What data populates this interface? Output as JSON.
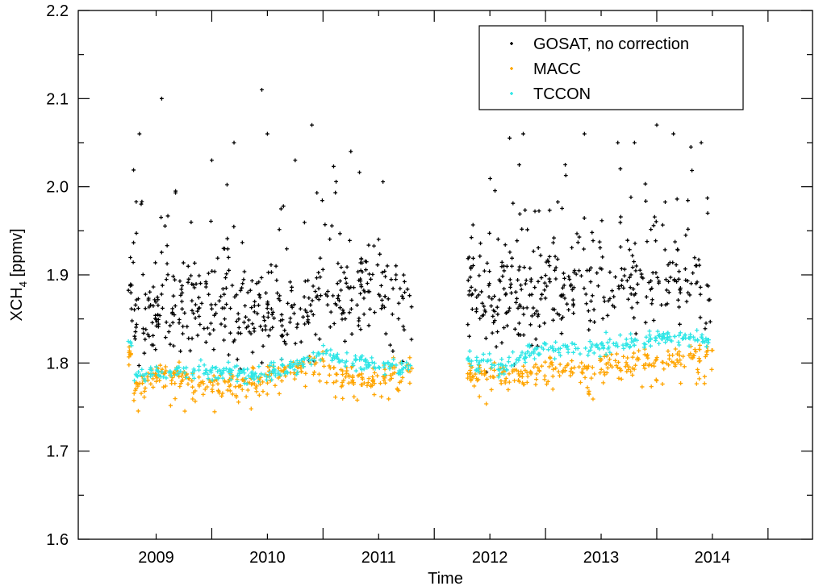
{
  "chart_data": {
    "type": "scatter",
    "xlabel": "Time",
    "ylabel": {
      "main": "XCH",
      "sub": "4",
      "units": " [ppmv]"
    },
    "xlim": [
      2008.3,
      2014.9
    ],
    "ylim": [
      1.6,
      2.2
    ],
    "x_ticks": [
      2009,
      2010,
      2011,
      2012,
      2013,
      2014
    ],
    "y_ticks": [
      "1.6",
      "1.7",
      "1.8",
      "1.9",
      "2.0",
      "2.1",
      "2.2"
    ],
    "legend_position": "top-right",
    "gap": [
      2011.3,
      2011.8
    ],
    "series": [
      {
        "name": "GOSAT, no correction",
        "color": "#000000",
        "x_range": [
          2008.75,
          2014.0
        ],
        "baseline": [
          [
            2008.8,
            1.85
          ],
          [
            2009.0,
            1.86
          ],
          [
            2009.3,
            1.87
          ],
          [
            2009.6,
            1.86
          ],
          [
            2009.9,
            1.85
          ],
          [
            2010.2,
            1.85
          ],
          [
            2010.5,
            1.87
          ],
          [
            2010.8,
            1.88
          ],
          [
            2011.1,
            1.87
          ],
          [
            2011.3,
            1.86
          ],
          [
            2011.8,
            1.88
          ],
          [
            2012.1,
            1.87
          ],
          [
            2012.5,
            1.88
          ],
          [
            2012.9,
            1.89
          ],
          [
            2013.3,
            1.89
          ],
          [
            2013.7,
            1.9
          ],
          [
            2014.0,
            1.89
          ]
        ],
        "spread": 0.045,
        "outliers": [
          [
            2008.85,
            2.06
          ],
          [
            2009.05,
            2.1
          ],
          [
            2009.5,
            2.03
          ],
          [
            2009.7,
            2.05
          ],
          [
            2009.95,
            2.11
          ],
          [
            2010.0,
            2.06
          ],
          [
            2010.25,
            2.03
          ],
          [
            2010.4,
            2.07
          ],
          [
            2010.75,
            2.04
          ],
          [
            2012.3,
            2.06
          ],
          [
            2012.85,
            2.06
          ],
          [
            2013.15,
            2.05
          ],
          [
            2013.3,
            2.05
          ],
          [
            2013.5,
            2.07
          ],
          [
            2013.65,
            2.06
          ],
          [
            2013.9,
            2.05
          ]
        ]
      },
      {
        "name": "MACC",
        "color": "#ffa500",
        "x_range": [
          2008.75,
          2014.0
        ],
        "baseline": [
          [
            2008.8,
            1.77
          ],
          [
            2009.0,
            1.79
          ],
          [
            2009.3,
            1.78
          ],
          [
            2009.6,
            1.775
          ],
          [
            2009.9,
            1.78
          ],
          [
            2010.2,
            1.79
          ],
          [
            2010.5,
            1.8
          ],
          [
            2010.8,
            1.78
          ],
          [
            2011.1,
            1.785
          ],
          [
            2011.3,
            1.79
          ],
          [
            2011.8,
            1.79
          ],
          [
            2012.1,
            1.785
          ],
          [
            2012.5,
            1.79
          ],
          [
            2012.9,
            1.795
          ],
          [
            2013.3,
            1.8
          ],
          [
            2013.7,
            1.805
          ],
          [
            2014.0,
            1.81
          ]
        ],
        "spread": 0.012
      },
      {
        "name": "TCCON",
        "color": "#2ee6e6",
        "x_range": [
          2008.75,
          2014.0
        ],
        "baseline": [
          [
            2008.8,
            1.785
          ],
          [
            2009.0,
            1.79
          ],
          [
            2009.3,
            1.79
          ],
          [
            2009.6,
            1.79
          ],
          [
            2009.9,
            1.785
          ],
          [
            2010.2,
            1.795
          ],
          [
            2010.5,
            1.81
          ],
          [
            2010.8,
            1.8
          ],
          [
            2011.1,
            1.795
          ],
          [
            2011.3,
            1.795
          ],
          [
            2011.8,
            1.805
          ],
          [
            2012.1,
            1.795
          ],
          [
            2012.5,
            1.82
          ],
          [
            2012.9,
            1.815
          ],
          [
            2013.3,
            1.825
          ],
          [
            2013.7,
            1.83
          ],
          [
            2014.0,
            1.825
          ]
        ],
        "spread": 0.008
      }
    ]
  }
}
